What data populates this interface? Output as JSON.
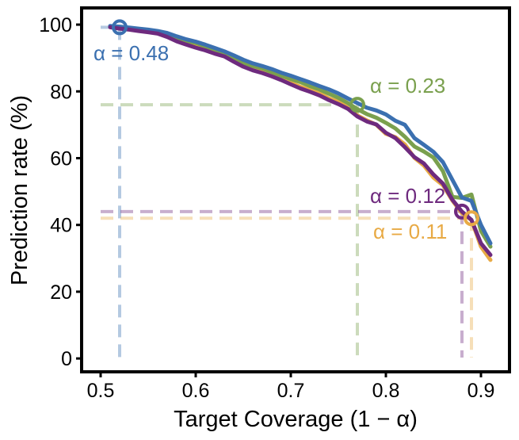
{
  "chart_data": {
    "type": "line",
    "title": "",
    "xlabel": "Target Coverage (1 − α)",
    "ylabel": "Prediction rate (%)",
    "xlim": [
      0.48,
      0.93
    ],
    "ylim": [
      -4,
      105
    ],
    "xticks": [
      0.5,
      0.6,
      0.7,
      0.8,
      0.9
    ],
    "xtick_labels": [
      "0.5",
      "0.6",
      "0.7",
      "0.8",
      "0.9"
    ],
    "yticks": [
      0,
      20,
      40,
      60,
      80,
      100
    ],
    "ytick_labels": [
      "0",
      "20",
      "40",
      "60",
      "80",
      "100"
    ],
    "grid": false,
    "legend": "none",
    "x": [
      0.51,
      0.52,
      0.53,
      0.54,
      0.55,
      0.56,
      0.57,
      0.58,
      0.59,
      0.6,
      0.61,
      0.62,
      0.63,
      0.64,
      0.65,
      0.66,
      0.67,
      0.68,
      0.69,
      0.7,
      0.71,
      0.72,
      0.73,
      0.74,
      0.75,
      0.76,
      0.77,
      0.78,
      0.79,
      0.8,
      0.81,
      0.82,
      0.83,
      0.84,
      0.85,
      0.86,
      0.87,
      0.88,
      0.89,
      0.9,
      0.91
    ],
    "series": [
      {
        "color": "#e8aa45",
        "values": [
          99.3,
          98.9,
          98.6,
          98.2,
          97.9,
          97.5,
          96.5,
          95.5,
          94.4,
          93.6,
          92.7,
          91.9,
          90.9,
          89.5,
          87.6,
          86.6,
          85.9,
          84.9,
          83.9,
          82.6,
          81.4,
          80.5,
          79.4,
          77.9,
          76.9,
          75.1,
          72.8,
          71.3,
          70.0,
          67.3,
          66.3,
          64.1,
          60.1,
          57.8,
          54.2,
          51.9,
          47.3,
          43.5,
          41.5,
          33.5,
          29.5
        ]
      },
      {
        "color": "#7aa04e",
        "values": [
          99.5,
          99.2,
          98.9,
          98.6,
          98.2,
          97.8,
          96.9,
          96.1,
          95.1,
          94.5,
          93.5,
          92.5,
          91.4,
          90.1,
          88.6,
          87.6,
          86.9,
          85.8,
          84.7,
          83.7,
          82.8,
          81.6,
          80.6,
          79.3,
          78.1,
          76.5,
          74.7,
          73.2,
          72.1,
          70.6,
          68.9,
          66.4,
          63.5,
          62.0,
          60.2,
          56.1,
          48.4,
          48.1,
          49.1,
          38.2,
          33.5
        ]
      },
      {
        "color": "#3b70b0",
        "values": [
          99.6,
          99.4,
          99.1,
          98.8,
          98.5,
          98.1,
          97.5,
          96.5,
          95.6,
          94.9,
          94.0,
          93.0,
          92.0,
          90.8,
          89.5,
          88.4,
          87.6,
          86.7,
          85.6,
          84.7,
          83.7,
          82.7,
          81.6,
          80.6,
          79.4,
          77.9,
          76.5,
          75.1,
          74.3,
          73.1,
          71.2,
          70.0,
          66.0,
          64.0,
          61.9,
          58.8,
          53.5,
          48.2,
          47.2,
          40.0,
          34.5
        ]
      },
      {
        "color": "#6e2a7e",
        "values": [
          99.2,
          98.8,
          98.5,
          98.1,
          97.7,
          97.3,
          96.3,
          95.0,
          94.0,
          93.1,
          92.3,
          91.3,
          90.5,
          88.9,
          87.4,
          86.3,
          85.5,
          84.5,
          83.4,
          82.1,
          80.9,
          79.9,
          78.8,
          77.4,
          76.2,
          74.8,
          72.5,
          71.0,
          70.1,
          67.6,
          66.0,
          63.3,
          60.3,
          58.4,
          55.1,
          52.4,
          47.5,
          44.0,
          41.5,
          34.5,
          31.0
        ]
      }
    ],
    "highlights": [
      {
        "label": "α = 0.48",
        "color": "#3b70b0",
        "x": 0.52,
        "y": 99.2
      },
      {
        "label": "α = 0.23",
        "color": "#7aa04e",
        "x": 0.77,
        "y": 76.0
      },
      {
        "label": "α = 0.12",
        "color": "#6e2a7e",
        "x": 0.88,
        "y": 44.0
      },
      {
        "label": "α = 0.11",
        "color": "#e8aa45",
        "x": 0.89,
        "y": 42.0
      }
    ]
  }
}
